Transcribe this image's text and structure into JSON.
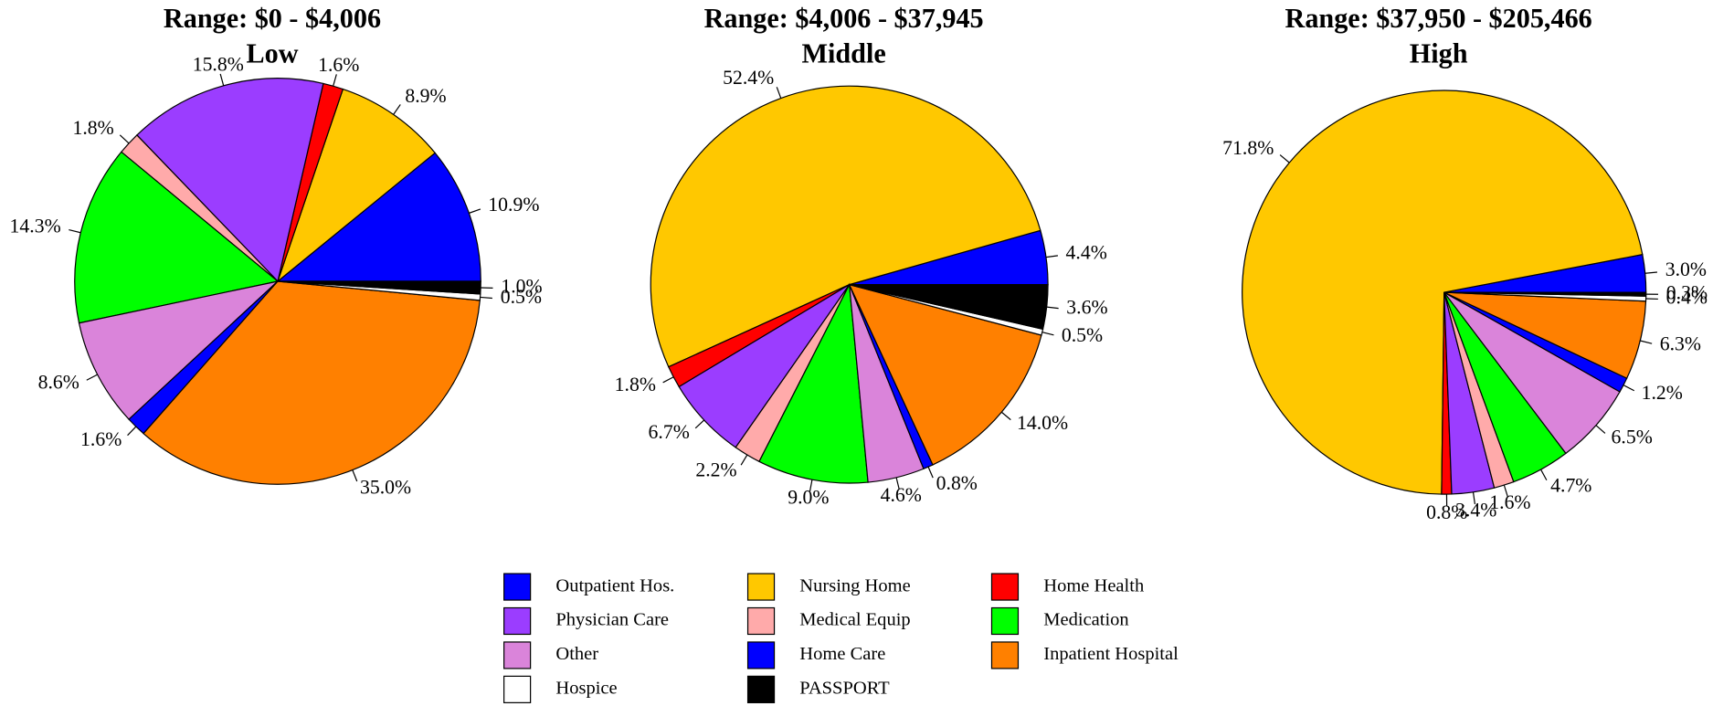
{
  "chart_data": [
    {
      "type": "pie",
      "title": "Range: $0 - $4,006",
      "subtitle": "Low",
      "categories": [
        "Outpatient Hos.",
        "Nursing Home",
        "Home Health",
        "Physician Care",
        "Medical Equip",
        "Medication",
        "Other",
        "Home Care",
        "Inpatient Hospital",
        "Hospice",
        "PASSPORT"
      ],
      "colors": [
        "#0000ff",
        "#ffc800",
        "#ff0000",
        "#9b3dff",
        "#ffaaaa",
        "#00ff00",
        "#da84da",
        "#0000ff",
        "#ff8000",
        "#ffffff",
        "#000000"
      ],
      "values": [
        10.9,
        8.9,
        1.6,
        15.8,
        1.8,
        14.3,
        8.6,
        1.6,
        35.0,
        0.5,
        1.0
      ],
      "value_labels": [
        "10.9%",
        "8.9%",
        "1.6%",
        "15.8%",
        "1.8%",
        "14.3%",
        "8.6%",
        "1.6%",
        "35.0%",
        "0.5%",
        "1.0%"
      ]
    },
    {
      "type": "pie",
      "title": "Range: $4,006 - $37,945",
      "subtitle": "Middle",
      "categories": [
        "Outpatient Hos.",
        "Nursing Home",
        "Home Health",
        "Physician Care",
        "Medical Equip",
        "Medication",
        "Other",
        "Home Care",
        "Inpatient Hospital",
        "Hospice",
        "PASSPORT"
      ],
      "colors": [
        "#0000ff",
        "#ffc800",
        "#ff0000",
        "#9b3dff",
        "#ffaaaa",
        "#00ff00",
        "#da84da",
        "#0000ff",
        "#ff8000",
        "#ffffff",
        "#000000"
      ],
      "values": [
        4.4,
        52.4,
        1.8,
        6.7,
        2.2,
        9.0,
        4.6,
        0.8,
        14.0,
        0.5,
        3.6
      ],
      "value_labels": [
        "4.4%",
        "52.4%",
        "1.8%",
        "6.7%",
        "2.2%",
        "9.0%",
        "4.6%",
        "0.8%",
        "14.0%",
        "0.5%",
        "3.6%"
      ]
    },
    {
      "type": "pie",
      "title": "Range: $37,950 - $205,466",
      "subtitle": "High",
      "categories": [
        "Outpatient Hos.",
        "Nursing Home",
        "Home Health",
        "Physician Care",
        "Medical Equip",
        "Medication",
        "Other",
        "Home Care",
        "Inpatient Hospital",
        "Hospice",
        "PASSPORT"
      ],
      "colors": [
        "#0000ff",
        "#ffc800",
        "#ff0000",
        "#9b3dff",
        "#ffaaaa",
        "#00ff00",
        "#da84da",
        "#0000ff",
        "#ff8000",
        "#ffffff",
        "#000000"
      ],
      "values": [
        3.0,
        71.8,
        0.8,
        3.4,
        1.6,
        4.7,
        6.5,
        1.2,
        6.3,
        0.4,
        0.3
      ],
      "value_labels": [
        "3.0%",
        "71.8%",
        "0.8%",
        "3.4%",
        "1.6%",
        "4.7%",
        "6.5%",
        "1.2%",
        "6.3%",
        "0.4%",
        "0.3%"
      ]
    }
  ]
}
